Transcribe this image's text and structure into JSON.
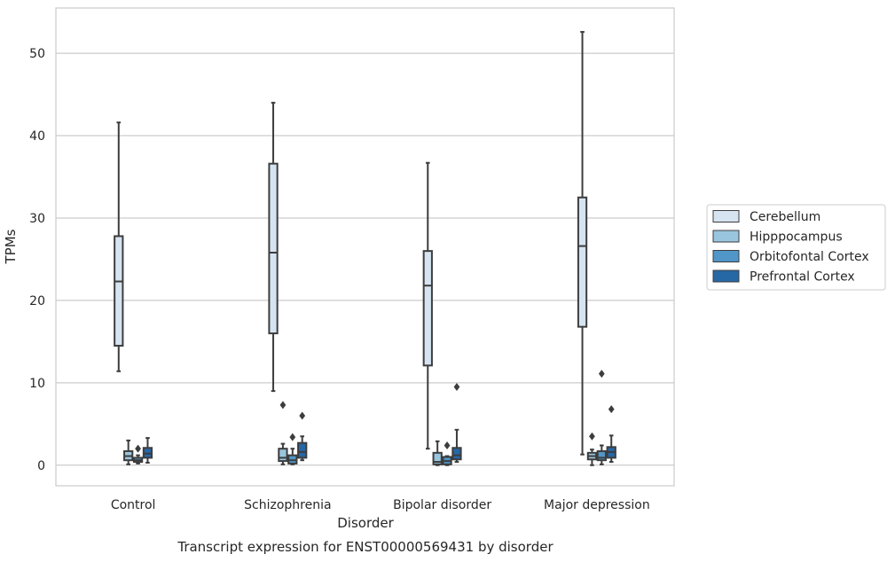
{
  "chart_data": {
    "type": "box",
    "title": "",
    "caption": "Transcript expression for ENST00000569431 by disorder",
    "xlabel": "Disorder",
    "ylabel": "TPMs",
    "ylim": [
      -2.5,
      55.5
    ],
    "yticks": [
      0,
      10,
      20,
      30,
      40,
      50
    ],
    "grid": "horizontal",
    "legend_position": "right",
    "categories": [
      "Control",
      "Schizophrenia",
      "Bipolar disorder",
      "Major depression"
    ],
    "series": [
      {
        "name": "Cerebellum",
        "color": "#d6e4f2",
        "boxes": [
          {
            "whislo": 11.4,
            "q1": 14.5,
            "med": 22.3,
            "q3": 27.8,
            "whishi": 41.6,
            "fliers": []
          },
          {
            "whislo": 9.0,
            "q1": 16.0,
            "med": 25.8,
            "q3": 36.6,
            "whishi": 44.0,
            "fliers": []
          },
          {
            "whislo": 2.0,
            "q1": 12.1,
            "med": 21.8,
            "q3": 26.0,
            "whishi": 36.7,
            "fliers": []
          },
          {
            "whislo": 1.3,
            "q1": 16.8,
            "med": 26.6,
            "q3": 32.5,
            "whishi": 52.6,
            "fliers": []
          }
        ]
      },
      {
        "name": "Hipppocampus",
        "color": "#9ac5de",
        "boxes": [
          {
            "whislo": 0.1,
            "q1": 0.6,
            "med": 1.1,
            "q3": 1.7,
            "whishi": 3.0,
            "fliers": []
          },
          {
            "whislo": 0.1,
            "q1": 0.5,
            "med": 0.9,
            "q3": 2.0,
            "whishi": 2.6,
            "fliers": [
              7.3
            ]
          },
          {
            "whislo": 0.0,
            "q1": 0.1,
            "med": 0.4,
            "q3": 1.5,
            "whishi": 2.9,
            "fliers": []
          },
          {
            "whislo": 0.0,
            "q1": 0.7,
            "med": 1.1,
            "q3": 1.5,
            "whishi": 1.9,
            "fliers": [
              3.5
            ]
          }
        ]
      },
      {
        "name": "Orbitofontal Cortex",
        "color": "#5096c8",
        "boxes": [
          {
            "whislo": 0.2,
            "q1": 0.4,
            "med": 0.6,
            "q3": 0.9,
            "whishi": 1.2,
            "fliers": [
              2.0
            ]
          },
          {
            "whislo": 0.1,
            "q1": 0.2,
            "med": 0.6,
            "q3": 1.2,
            "whishi": 2.0,
            "fliers": [
              3.4
            ]
          },
          {
            "whislo": 0.0,
            "q1": 0.1,
            "med": 0.5,
            "q3": 1.0,
            "whishi": 1.1,
            "fliers": [
              2.4
            ]
          },
          {
            "whislo": 0.1,
            "q1": 0.6,
            "med": 0.9,
            "q3": 1.7,
            "whishi": 2.4,
            "fliers": [
              11.1
            ]
          }
        ]
      },
      {
        "name": "Prefrontal Cortex",
        "color": "#2667a6",
        "boxes": [
          {
            "whislo": 0.3,
            "q1": 0.9,
            "med": 1.4,
            "q3": 2.1,
            "whishi": 3.3,
            "fliers": []
          },
          {
            "whislo": 0.6,
            "q1": 0.9,
            "med": 1.6,
            "q3": 2.7,
            "whishi": 3.5,
            "fliers": [
              6.0
            ]
          },
          {
            "whislo": 0.4,
            "q1": 0.7,
            "med": 1.2,
            "q3": 2.1,
            "whishi": 4.3,
            "fliers": [
              9.5
            ]
          },
          {
            "whislo": 0.4,
            "q1": 0.9,
            "med": 1.6,
            "q3": 2.2,
            "whishi": 3.6,
            "fliers": [
              6.8
            ]
          }
        ]
      }
    ]
  }
}
